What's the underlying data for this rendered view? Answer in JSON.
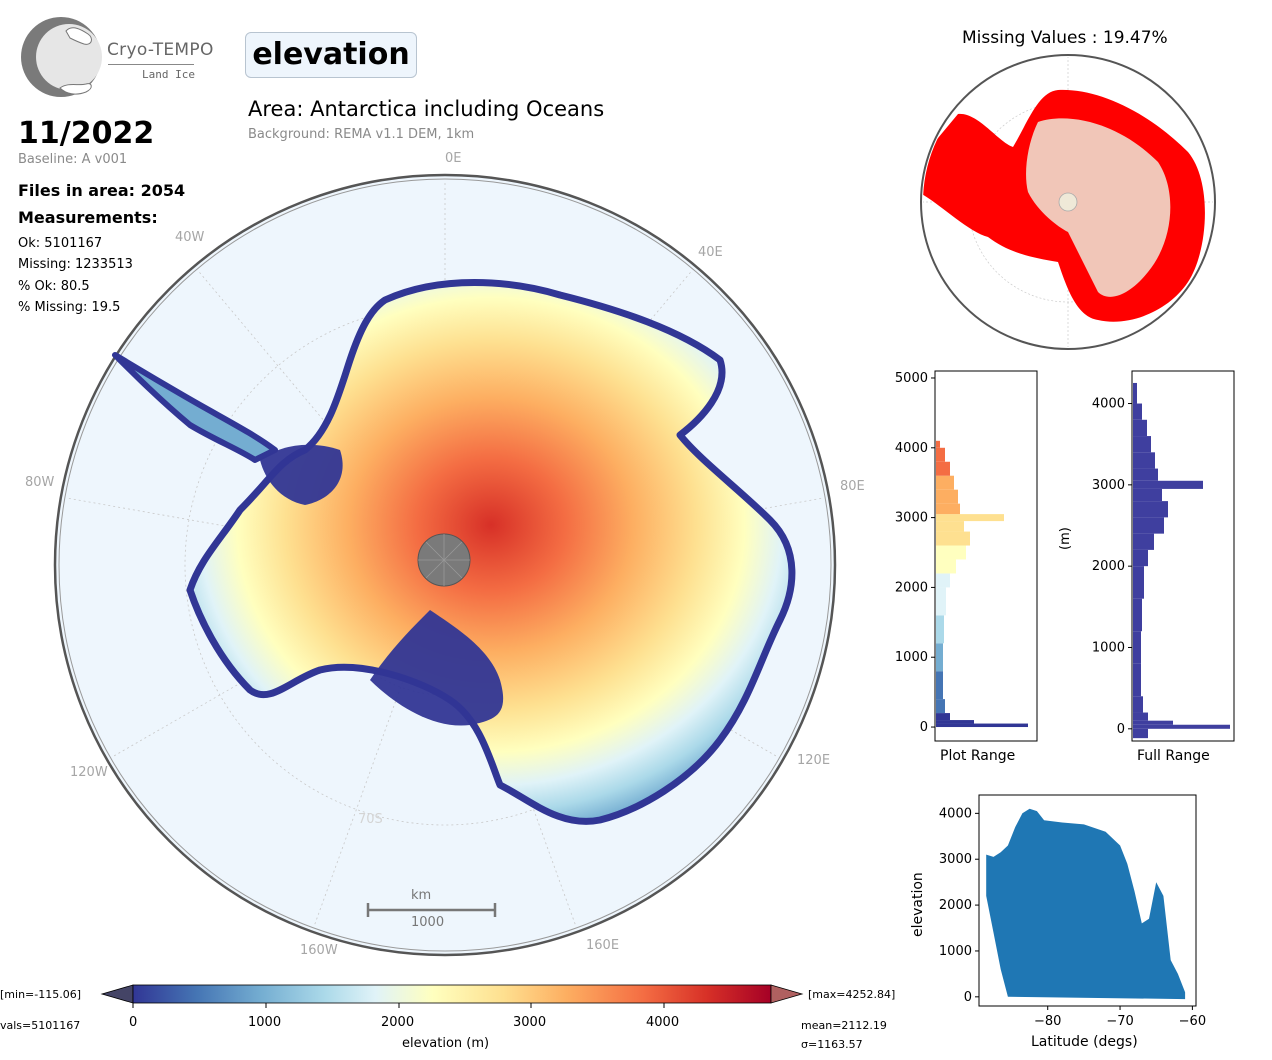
{
  "header": {
    "logo_title": "Cryo-TEMPO",
    "logo_subtitle": "Land Ice",
    "parameter": "elevation",
    "area_title": "Area: Antarctica including Oceans",
    "background_note": "Background: REMA v1.1 DEM, 1km"
  },
  "stats": {
    "date": "11/2022",
    "baseline": "Baseline: A v001",
    "files_in_area": "Files in area: 2054",
    "measurements_heading": "Measurements:",
    "ok": "Ok: 5101167",
    "missing": "Missing: 1233513",
    "pct_ok": "% Ok: 80.5",
    "pct_missing": "% Missing: 19.5"
  },
  "map": {
    "lon_labels": {
      "l0E": "0E",
      "l40E": "40E",
      "l80E": "80E",
      "l120E": "120E",
      "l160E": "160E",
      "l40W": "40W",
      "l80W": "80W",
      "l120W": "120W",
      "l160W": "160W",
      "l70S": "70S"
    },
    "scale_unit": "km",
    "scale_value": "1000"
  },
  "colorbar": {
    "min_label": "[min=-115.06]",
    "max_label": "[max=4252.84]",
    "nvals_label": "vals=5101167",
    "mean_label": "mean=2112.19",
    "sigma_label": "σ=1163.57",
    "xlabel": "elevation (m)",
    "ticks": [
      "0",
      "1000",
      "2000",
      "3000",
      "4000"
    ],
    "colormap": [
      "#313695",
      "#4575b4",
      "#74add1",
      "#abd9e9",
      "#e0f3f8",
      "#ffffbf",
      "#fee090",
      "#fdae61",
      "#f46d43",
      "#d73027",
      "#a50026"
    ],
    "range": [
      0,
      4800
    ],
    "ocean_color": "#eef6fd"
  },
  "missing_panel": {
    "title": "Missing Values : 19.47%",
    "missing_color": "#ff0000",
    "ok_color": "#efe9d8"
  },
  "chart_data": [
    {
      "type": "bar",
      "name": "plot_range_histogram",
      "orientation": "horizontal",
      "xlabel": "Plot Range",
      "ylabel": "",
      "ylim": [
        -200,
        5100
      ],
      "yticks": [
        "0",
        "1000",
        "2000",
        "3000",
        "4000",
        "5000"
      ],
      "bins": [
        [
          0,
          50,
          0.92
        ],
        [
          50,
          100,
          0.38
        ],
        [
          100,
          200,
          0.14
        ],
        [
          200,
          400,
          0.09
        ],
        [
          400,
          800,
          0.07
        ],
        [
          800,
          1200,
          0.07
        ],
        [
          1200,
          1600,
          0.08
        ],
        [
          1600,
          2000,
          0.1
        ],
        [
          2000,
          2200,
          0.14
        ],
        [
          2200,
          2400,
          0.2
        ],
        [
          2400,
          2600,
          0.3
        ],
        [
          2600,
          2800,
          0.34
        ],
        [
          2800,
          2950,
          0.28
        ],
        [
          2950,
          3050,
          0.68
        ],
        [
          3050,
          3200,
          0.24
        ],
        [
          3200,
          3400,
          0.22
        ],
        [
          3400,
          3600,
          0.18
        ],
        [
          3600,
          3800,
          0.14
        ],
        [
          3800,
          4000,
          0.09
        ],
        [
          4000,
          4100,
          0.04
        ]
      ]
    },
    {
      "type": "bar",
      "name": "full_range_histogram",
      "orientation": "horizontal",
      "xlabel": "Full Range",
      "ylabel": "(m)",
      "ylim": [
        -150,
        4400
      ],
      "yticks": [
        "0",
        "1000",
        "2000",
        "3000",
        "4000"
      ],
      "bins": [
        [
          -115,
          0,
          0.15
        ],
        [
          0,
          50,
          0.97
        ],
        [
          50,
          100,
          0.4
        ],
        [
          100,
          200,
          0.15
        ],
        [
          200,
          400,
          0.1
        ],
        [
          400,
          800,
          0.08
        ],
        [
          800,
          1200,
          0.08
        ],
        [
          1200,
          1600,
          0.09
        ],
        [
          1600,
          2000,
          0.11
        ],
        [
          2000,
          2200,
          0.15
        ],
        [
          2200,
          2400,
          0.21
        ],
        [
          2400,
          2600,
          0.31
        ],
        [
          2600,
          2800,
          0.35
        ],
        [
          2800,
          2950,
          0.29
        ],
        [
          2950,
          3050,
          0.7
        ],
        [
          3050,
          3200,
          0.25
        ],
        [
          3200,
          3400,
          0.22
        ],
        [
          3400,
          3600,
          0.18
        ],
        [
          3600,
          3800,
          0.14
        ],
        [
          3800,
          4000,
          0.09
        ],
        [
          4000,
          4253,
          0.04
        ]
      ],
      "color": "#3f3f9f"
    },
    {
      "type": "scatter",
      "name": "elevation_vs_latitude",
      "xlabel": "Latitude (degs)",
      "ylabel": "elevation",
      "xlim": [
        -89.5,
        -59.5
      ],
      "ylim": [
        -200,
        4400
      ],
      "xticks": [
        "−80",
        "−70",
        "−60"
      ],
      "yticks": [
        "0",
        "1000",
        "2000",
        "3000",
        "4000"
      ],
      "color": "#1f77b4",
      "envelope_upper": [
        [
          -88.5,
          3100
        ],
        [
          -87.5,
          3050
        ],
        [
          -86.5,
          3150
        ],
        [
          -85.5,
          3300
        ],
        [
          -84.5,
          3700
        ],
        [
          -83.5,
          4000
        ],
        [
          -82.5,
          4100
        ],
        [
          -81.5,
          4050
        ],
        [
          -80.5,
          3850
        ],
        [
          -78,
          3800
        ],
        [
          -75,
          3760
        ],
        [
          -72,
          3600
        ],
        [
          -70,
          3300
        ],
        [
          -69,
          2900
        ],
        [
          -68,
          2300
        ],
        [
          -67,
          1600
        ],
        [
          -66,
          1700
        ],
        [
          -65,
          2500
        ],
        [
          -64,
          2200
        ],
        [
          -63,
          800
        ],
        [
          -62,
          500
        ],
        [
          -61,
          100
        ]
      ],
      "envelope_lower": [
        [
          -88.5,
          2200
        ],
        [
          -87.5,
          1400
        ],
        [
          -86.5,
          600
        ],
        [
          -85.5,
          0
        ],
        [
          -61,
          -50
        ]
      ]
    }
  ]
}
